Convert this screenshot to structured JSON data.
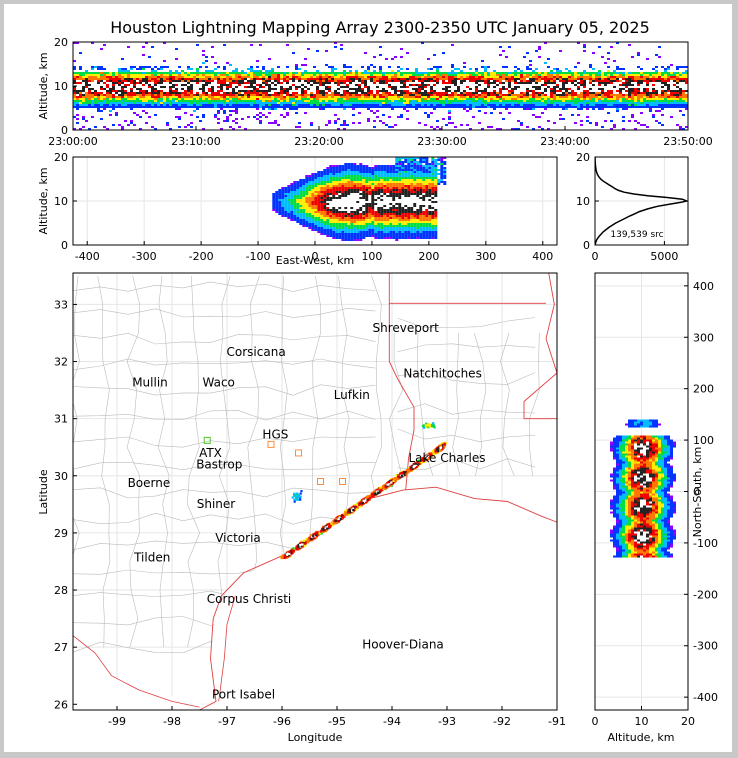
{
  "colors": {
    "background": "#ffffff",
    "outer_border": "#c8c8c8",
    "coast_state": "#e04040",
    "county": "#bbbbbb",
    "station_orange": "#ff8c3c",
    "station_green": "#44cc22",
    "hoover_diana": "#2233dd",
    "density_ramp": [
      "#8800ff",
      "#0033ff",
      "#00bbff",
      "#00dd44",
      "#ffee00",
      "#ff7700",
      "#ee0000",
      "#222222",
      "#ffffff"
    ]
  },
  "chart_data": [
    {
      "id": "time-altitude",
      "type": "heatmap",
      "title": "Houston Lightning Mapping Array 2300-2350 UTC January 05, 2025",
      "xlabel": "",
      "ylabel": "Altitude, km",
      "x_ticks": [
        "23:00:00",
        "23:10:00",
        "23:20:00",
        "23:30:00",
        "23:40:00",
        "23:50:00"
      ],
      "y_ticks": [
        0,
        10,
        20
      ],
      "xlim_minutes": [
        0,
        50
      ],
      "ylim": [
        0,
        20
      ],
      "peak_altitude_km": 10
    },
    {
      "id": "east-west-altitude",
      "type": "heatmap",
      "xlabel": "East-West, km",
      "ylabel": "Altitude, km",
      "x_ticks": [
        -400,
        -300,
        -200,
        -100,
        0,
        100,
        200,
        300,
        400
      ],
      "y_ticks": [
        0,
        10,
        20
      ],
      "xlim": [
        -425,
        425
      ],
      "ylim": [
        0,
        20
      ],
      "source_extent_km": [
        -60,
        200
      ]
    },
    {
      "id": "altitude-histogram",
      "type": "line",
      "annotation": "139,539 src",
      "x_ticks": [
        0,
        5000
      ],
      "y_ticks": [
        0,
        10,
        20
      ],
      "xlim": [
        0,
        6700
      ],
      "ylim": [
        0,
        20
      ],
      "x": [
        0,
        40,
        120,
        300,
        600,
        1000,
        1500,
        2000,
        2500,
        2800,
        3200,
        3800,
        4500,
        5400,
        6200,
        6600,
        6300,
        5200,
        3800,
        2800,
        2100,
        1700,
        1450,
        1250,
        1050,
        850,
        600,
        400,
        250,
        150,
        80,
        40,
        20,
        10,
        5
      ],
      "y": [
        0,
        0.5,
        1.2,
        2,
        3,
        4,
        5,
        5.8,
        6.6,
        7,
        7.6,
        8.2,
        8.8,
        9.3,
        9.7,
        10,
        10.4,
        10.8,
        11.2,
        11.6,
        12,
        12.4,
        12.8,
        13.2,
        13.6,
        14,
        14.5,
        15,
        15.6,
        16.2,
        17,
        17.8,
        18.6,
        19.3,
        20
      ]
    },
    {
      "id": "map",
      "type": "scatter",
      "xlabel": "Longitude",
      "ylabel": "Latitude",
      "x_ticks": [
        -99,
        -98,
        -97,
        -96,
        -95,
        -94,
        -93,
        -92,
        -91
      ],
      "y_ticks": [
        26,
        27,
        28,
        29,
        30,
        31,
        32,
        33
      ],
      "xlim": [
        -99.8,
        -91
      ],
      "ylim": [
        25.9,
        33.55
      ],
      "cities": [
        {
          "name": "Shreveport",
          "lon": -93.75,
          "lat": 32.52,
          "color": "#000000"
        },
        {
          "name": "Corsicana",
          "lon": -96.47,
          "lat": 32.1,
          "color": "#000000"
        },
        {
          "name": "Natchitoches",
          "lon": -93.08,
          "lat": 31.72,
          "color": "#000000"
        },
        {
          "name": "Mullin",
          "lon": -98.4,
          "lat": 31.56,
          "color": "#ff8c3c"
        },
        {
          "name": "Waco",
          "lon": -97.15,
          "lat": 31.56,
          "color": "#000000"
        },
        {
          "name": "Lufkin",
          "lon": -94.73,
          "lat": 31.34,
          "color": "#000000"
        },
        {
          "name": "HGS",
          "lon": -96.12,
          "lat": 30.65,
          "color": "#000000"
        },
        {
          "name": "ATX",
          "lon": -97.3,
          "lat": 30.33,
          "color": "#ff8c3c"
        },
        {
          "name": "Bastrop",
          "lon": -97.14,
          "lat": 30.13,
          "color": "#000000"
        },
        {
          "name": "Lake Charles",
          "lon": -93.0,
          "lat": 30.24,
          "color": "#000000"
        },
        {
          "name": "Boerne",
          "lon": -98.42,
          "lat": 29.8,
          "color": "#000000"
        },
        {
          "name": "Shiner",
          "lon": -97.2,
          "lat": 29.44,
          "color": "#000000"
        },
        {
          "name": "Victoria",
          "lon": -96.8,
          "lat": 28.84,
          "color": "#000000"
        },
        {
          "name": "Tilden",
          "lon": -98.36,
          "lat": 28.5,
          "color": "#000000"
        },
        {
          "name": "Corpus Christi",
          "lon": -96.6,
          "lat": 27.77,
          "color": "#000000"
        },
        {
          "name": "Hoover-Diana",
          "lon": -93.8,
          "lat": 26.98,
          "color": "#2233dd"
        },
        {
          "name": "Port Isabel",
          "lon": -96.7,
          "lat": 26.1,
          "color": "#000000"
        }
      ],
      "storm_line": {
        "start": [
          -95.9,
          28.65
        ],
        "end": [
          -93.15,
          30.5
        ],
        "lake_cell": [
          -93.35,
          30.9
        ],
        "hgs_cell": [
          -95.75,
          29.65
        ]
      }
    },
    {
      "id": "altitude-north-south",
      "type": "heatmap",
      "xlabel": "Altitude, km",
      "ylabel": "North-South, km",
      "x_ticks": [
        0,
        10,
        20
      ],
      "y_ticks": [
        -400,
        -300,
        -200,
        -100,
        0,
        100,
        200,
        300,
        400
      ],
      "xlim": [
        0,
        20
      ],
      "ylim": [
        -425,
        425
      ],
      "source_extent_km": [
        -120,
        135
      ]
    }
  ]
}
